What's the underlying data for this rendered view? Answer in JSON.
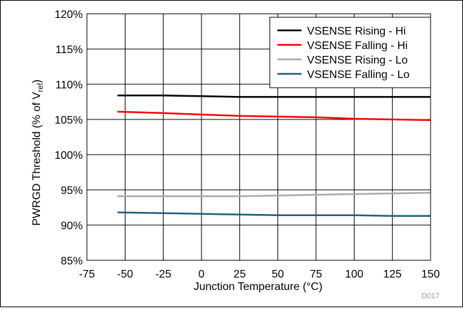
{
  "chart_data": {
    "type": "line",
    "xlabel": "Junction Temperature (°C)",
    "ylabel": {
      "main": "PWRGD Threshold (% of V",
      "sub": "ref",
      "close": ")"
    },
    "x_ticks": [
      "-75",
      "-50",
      "-25",
      "0",
      "25",
      "50",
      "75",
      "100",
      "125",
      "150"
    ],
    "y_ticks": [
      "85%",
      "90%",
      "95%",
      "100%",
      "105%",
      "110%",
      "115%",
      "120%"
    ],
    "xlim": [
      -75,
      150
    ],
    "ylim": [
      85,
      120
    ],
    "grid": true,
    "legend_position": "top-right",
    "figure_id": "D017",
    "series": [
      {
        "name": "VSENSE Rising - Hi",
        "color": "#000000",
        "x": [
          -55,
          -25,
          0,
          25,
          50,
          75,
          100,
          125,
          150
        ],
        "y": [
          108.4,
          108.4,
          108.3,
          108.2,
          108.2,
          108.2,
          108.2,
          108.2,
          108.2
        ]
      },
      {
        "name": "VSENSE Falling - Hi",
        "color": "#ff0000",
        "x": [
          -55,
          -25,
          0,
          25,
          50,
          75,
          100,
          125,
          150
        ],
        "y": [
          106.1,
          105.9,
          105.7,
          105.5,
          105.4,
          105.3,
          105.1,
          105.0,
          104.9
        ]
      },
      {
        "name": "VSENSE Rising - Lo",
        "color": "#aaaaaa",
        "x": [
          -55,
          -25,
          0,
          25,
          50,
          75,
          100,
          125,
          150
        ],
        "y": [
          94.1,
          94.1,
          94.1,
          94.1,
          94.2,
          94.3,
          94.4,
          94.5,
          94.6
        ]
      },
      {
        "name": "VSENSE Falling - Lo",
        "color": "#1f5f7a",
        "x": [
          -55,
          -25,
          0,
          25,
          50,
          75,
          100,
          125,
          150
        ],
        "y": [
          91.8,
          91.7,
          91.6,
          91.5,
          91.4,
          91.4,
          91.4,
          91.3,
          91.3
        ]
      }
    ]
  }
}
